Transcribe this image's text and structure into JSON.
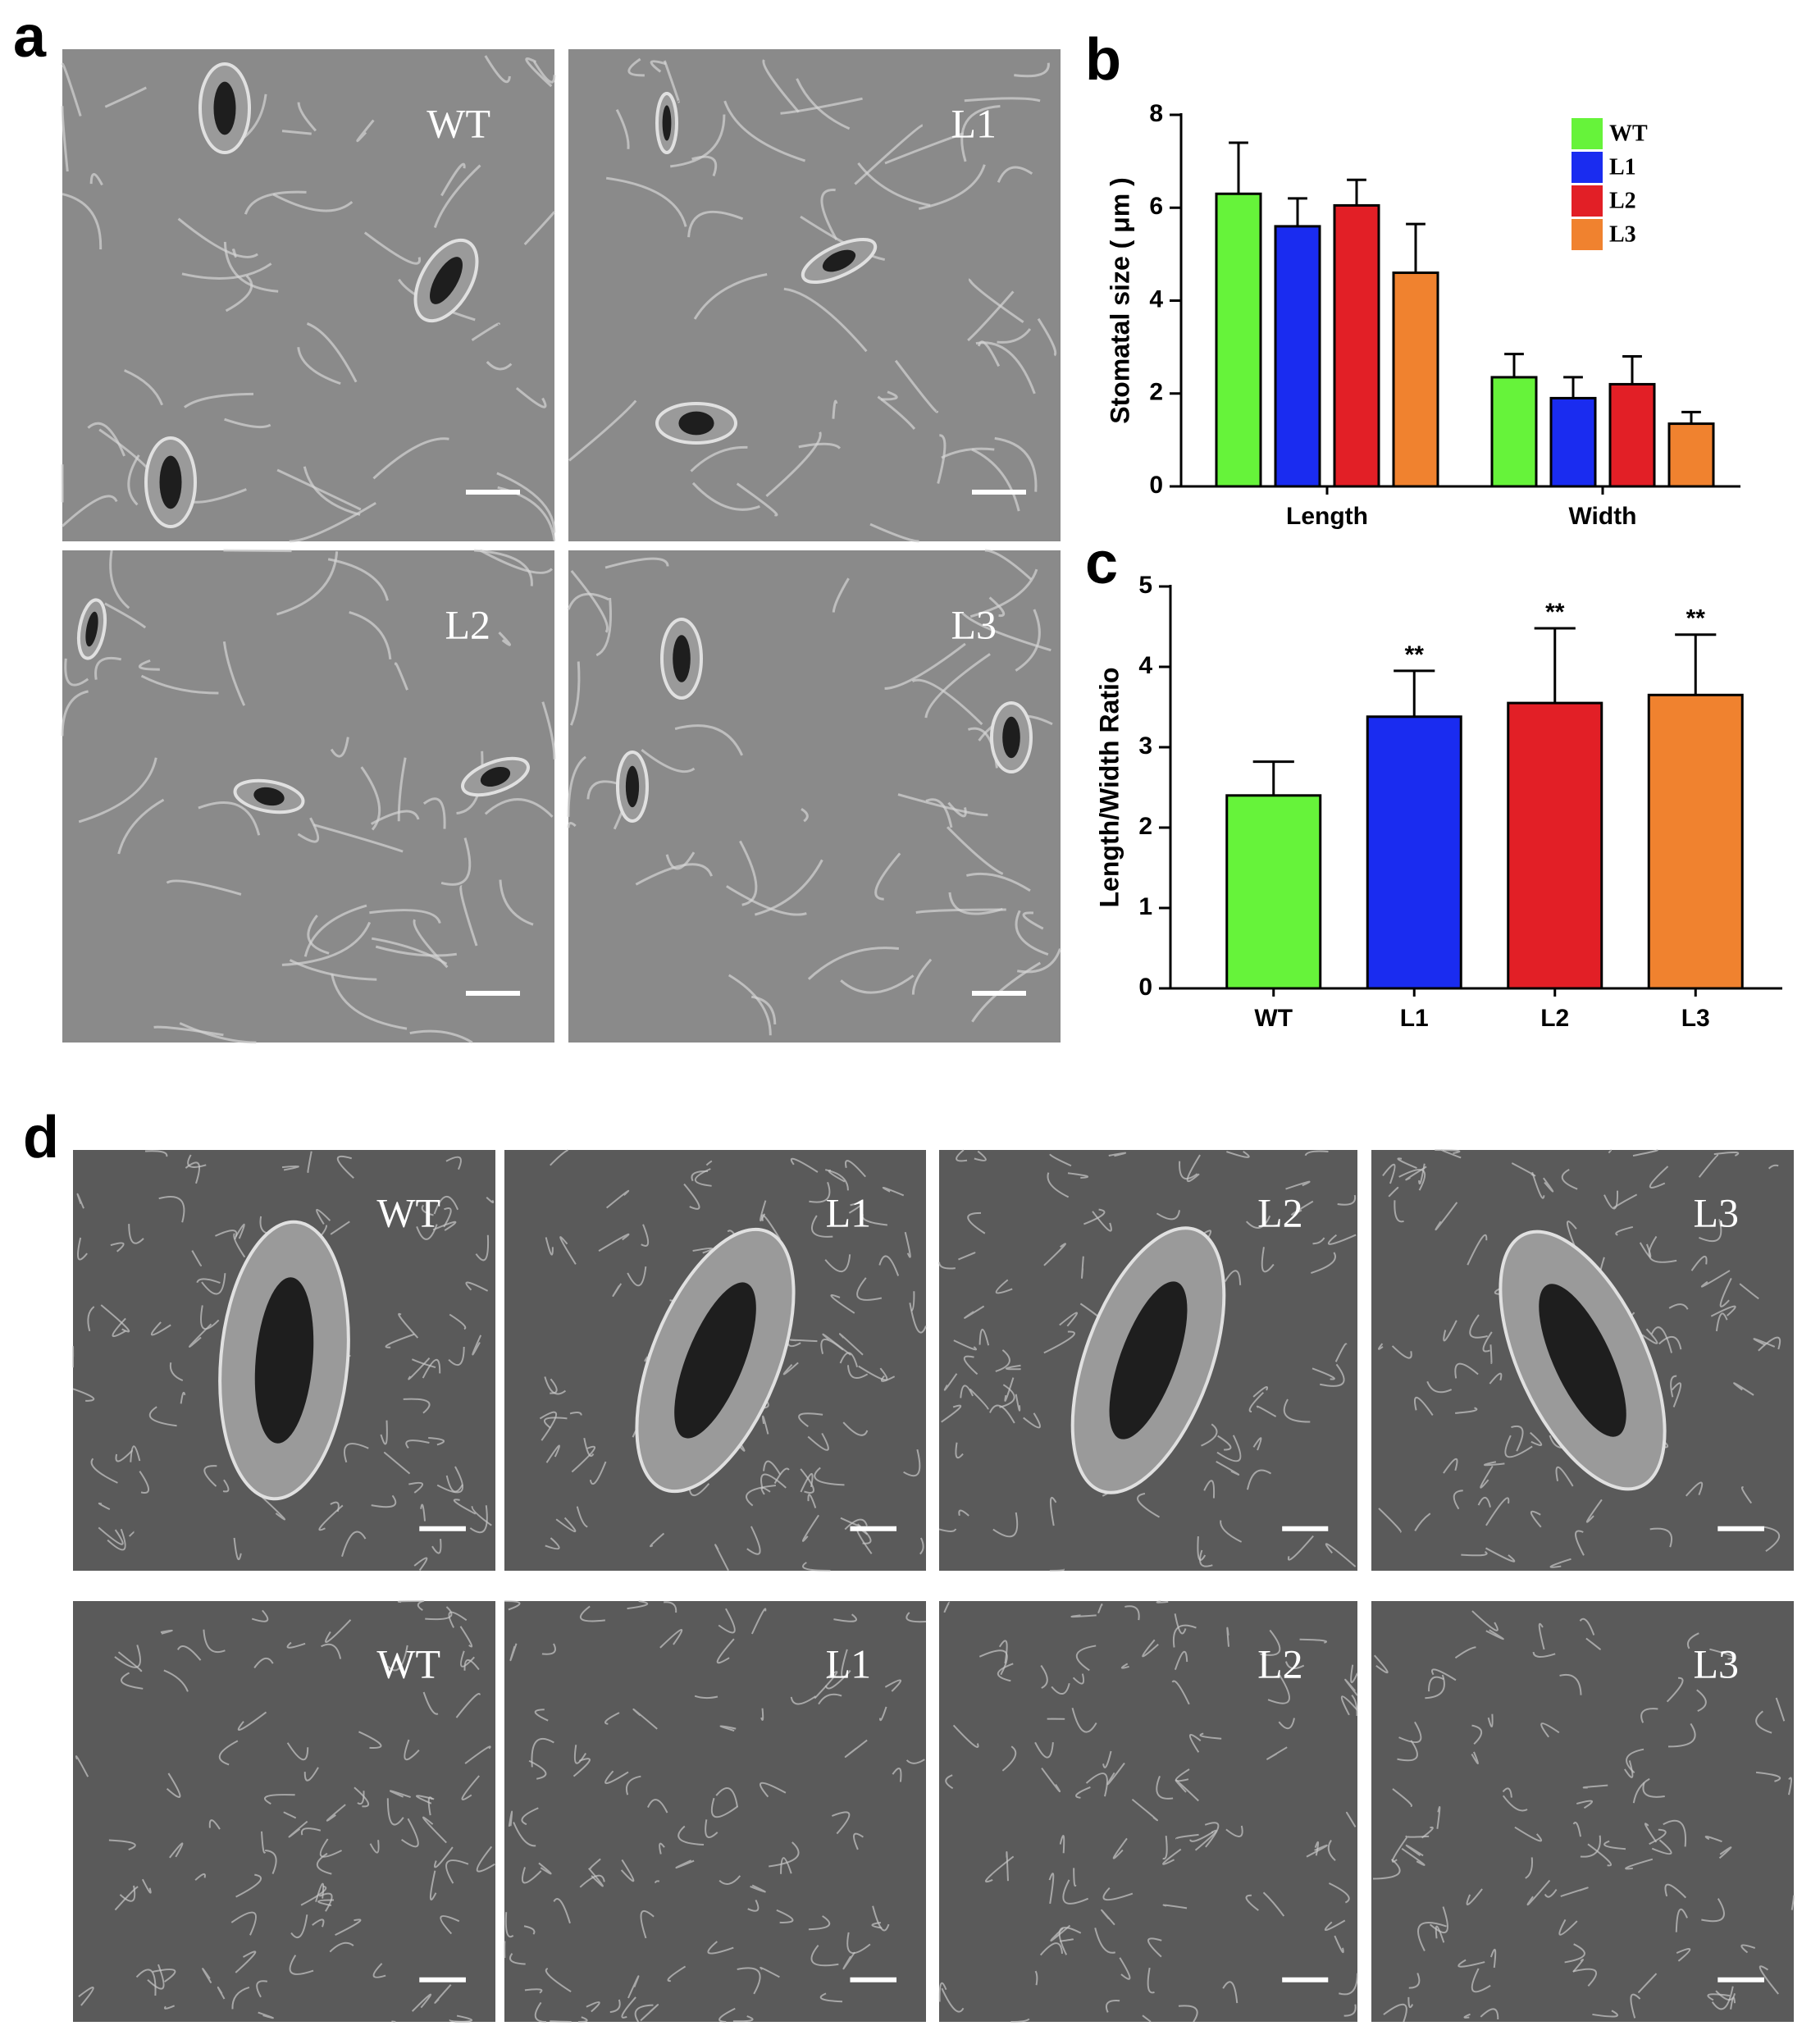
{
  "panels": {
    "a": {
      "letter": "a",
      "images": [
        {
          "label": "WT"
        },
        {
          "label": "L1"
        },
        {
          "label": "L2"
        },
        {
          "label": "L3"
        }
      ]
    },
    "d": {
      "letter": "d",
      "rows": [
        [
          "WT",
          "L1",
          "L2",
          "L3"
        ],
        [
          "WT",
          "L1",
          "L2",
          "L3"
        ]
      ]
    }
  },
  "chart_data": [
    {
      "type": "bar",
      "panel_label": "b",
      "y_label": "Stomatal size ( μm )",
      "categories": [
        "Length",
        "Width"
      ],
      "series": [
        {
          "name": "WT",
          "color": "#66f33a",
          "values": [
            6.3,
            2.35
          ],
          "errors": [
            1.1,
            0.5
          ]
        },
        {
          "name": "L1",
          "color": "#1a2cf0",
          "values": [
            5.6,
            1.9
          ],
          "errors": [
            0.6,
            0.45
          ]
        },
        {
          "name": "L2",
          "color": "#e21f26",
          "values": [
            6.05,
            2.2
          ],
          "errors": [
            0.55,
            0.6
          ]
        },
        {
          "name": "L3",
          "color": "#f0822f",
          "values": [
            4.6,
            1.35
          ],
          "errors": [
            1.05,
            0.25
          ]
        }
      ],
      "ylim": [
        0,
        8
      ],
      "yticks": [
        0,
        2,
        4,
        6,
        8
      ],
      "legend": "upper-right"
    },
    {
      "type": "bar",
      "panel_label": "c",
      "y_label": "Length/Width Ratio",
      "categories": [
        "WT",
        "L1",
        "L2",
        "L3"
      ],
      "values": [
        2.4,
        3.38,
        3.55,
        3.65
      ],
      "errors": [
        0.42,
        0.57,
        0.93,
        0.75
      ],
      "colors": [
        "#66f33a",
        "#1a2cf0",
        "#e21f26",
        "#f0822f"
      ],
      "annotations": [
        null,
        "**",
        "**",
        "**"
      ],
      "ylim": [
        0,
        5
      ],
      "yticks": [
        0,
        1,
        2,
        3,
        4,
        5
      ]
    }
  ]
}
